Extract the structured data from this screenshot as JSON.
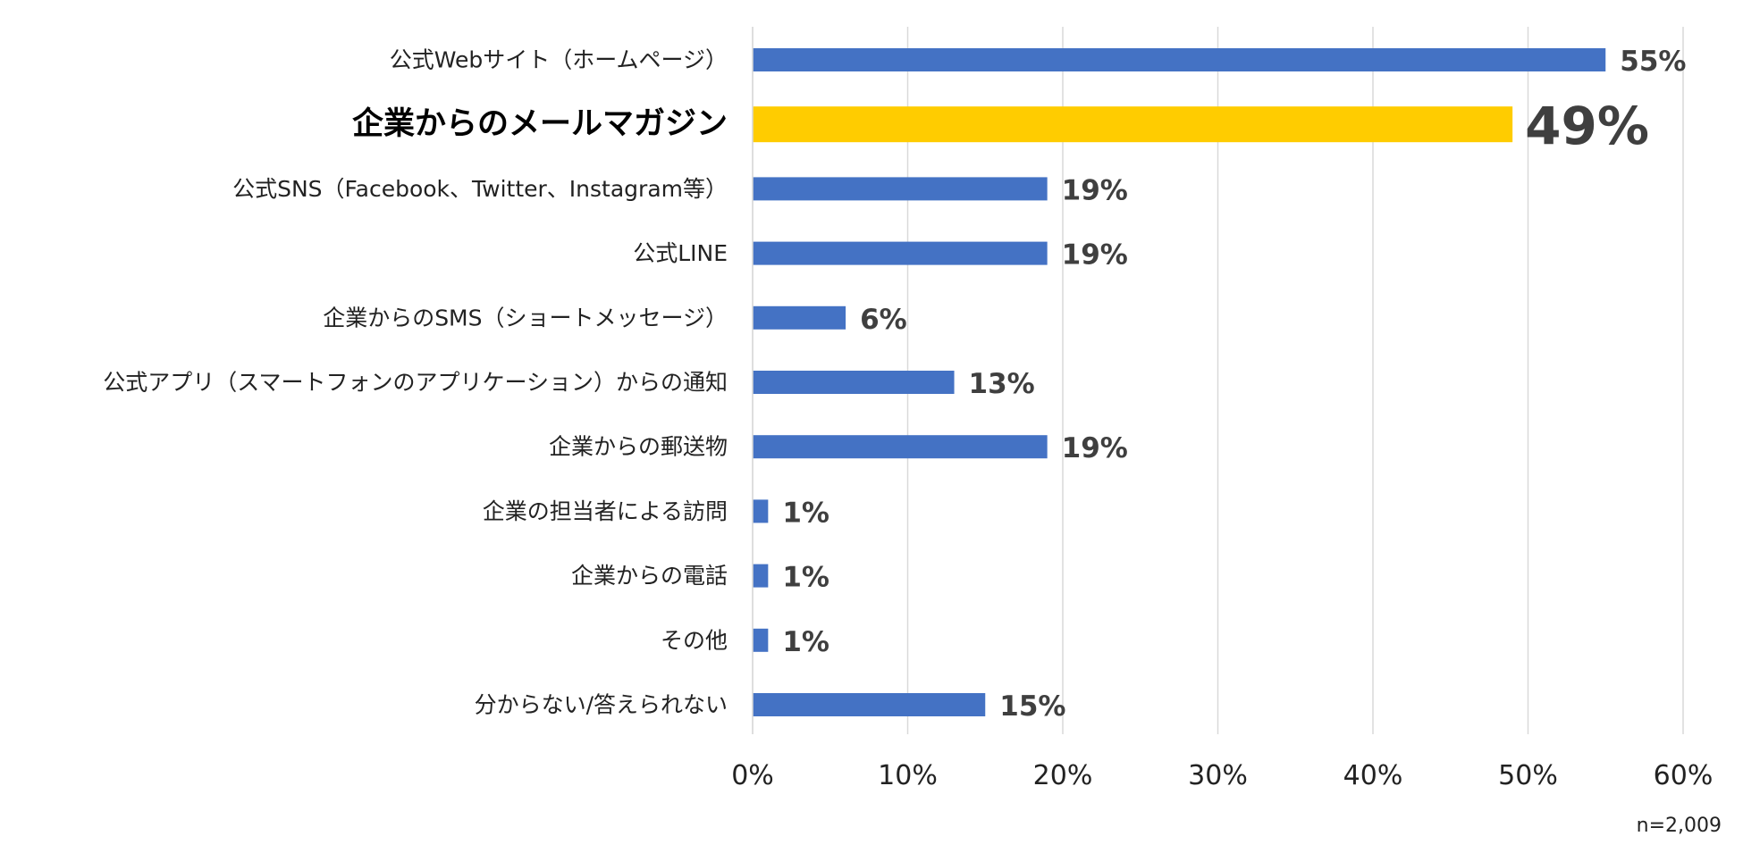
{
  "chart_data": {
    "type": "bar",
    "orientation": "horizontal",
    "categories": [
      "公式Webサイト（ホームページ）",
      "企業からのメールマガジン",
      "公式SNS（Facebook、Twitter、Instagram等）",
      "公式LINE",
      "企業からのSMS（ショートメッセージ）",
      "公式アプリ（スマートフォンのアプリケーション）からの通知",
      "企業からの郵送物",
      "企業の担当者による訪問",
      "企業からの電話",
      "その他",
      "分からない/答えられない"
    ],
    "values": [
      55,
      49,
      19,
      19,
      6,
      13,
      19,
      1,
      1,
      1,
      15
    ],
    "value_labels": [
      "55%",
      "49%",
      "19%",
      "19%",
      "6%",
      "13%",
      "19%",
      "1%",
      "1%",
      "1%",
      "15%"
    ],
    "highlight_index": 1,
    "xlim": [
      0,
      60
    ],
    "xticks": [
      0,
      10,
      20,
      30,
      40,
      50,
      60
    ],
    "xtick_labels": [
      "0%",
      "10%",
      "20%",
      "30%",
      "40%",
      "50%",
      "60%"
    ],
    "grid": "vertical",
    "colors": {
      "bar": "#4472c4",
      "highlight": "#ffcc00",
      "grid": "#d9d9d9"
    },
    "note": "n=2,009"
  }
}
